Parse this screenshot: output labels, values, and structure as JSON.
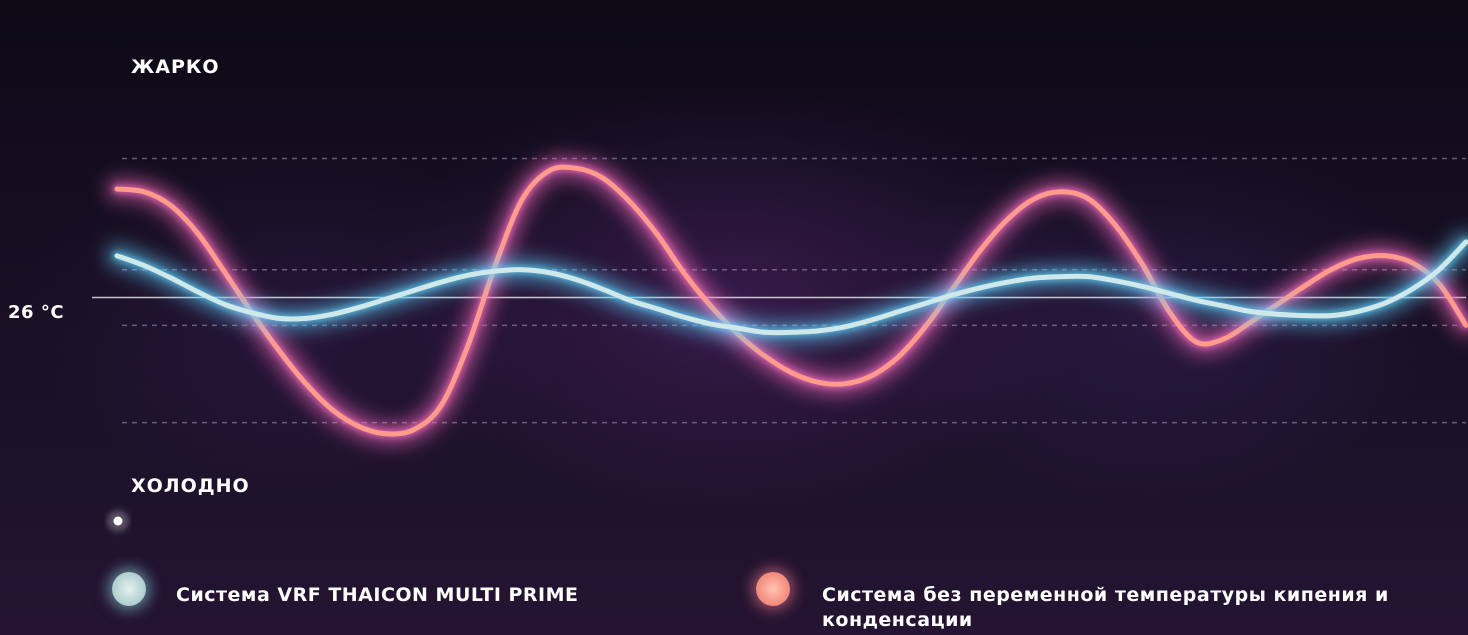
{
  "chart_data": {
    "type": "line",
    "labels": {
      "top": "ЖАРКО",
      "bottom": "ХОЛОДНО",
      "reference": "26 °C"
    },
    "x": [
      0,
      0.1,
      0.2,
      0.3,
      0.4,
      0.5,
      0.6,
      0.7,
      0.8,
      0.9,
      1.0,
      1.1,
      1.2,
      1.3,
      1.4,
      1.5,
      1.6,
      1.7,
      1.8,
      1.9,
      2.0,
      2.1,
      2.2,
      2.3,
      2.4,
      2.5,
      2.6,
      2.7,
      2.8,
      2.9,
      3.0,
      3.1,
      3.2,
      3.3,
      3.4,
      3.5,
      3.6,
      3.7,
      3.8,
      3.9,
      4.0,
      4.1,
      4.2,
      4.3,
      4.4,
      4.5,
      4.6,
      4.7,
      4.8,
      4.9,
      5.0
    ],
    "ylim": [
      -1.6,
      1.6
    ],
    "reference_y": 0,
    "gridlines_y": [
      1.0,
      0.2,
      -0.2,
      -0.9
    ],
    "series": [
      {
        "name": "Система VRF THAICON MULTI PRIME",
        "color": "#cfe9ea",
        "glow": "#5fd6ff",
        "values": [
          0.3,
          0.23,
          0.14,
          0.04,
          -0.05,
          -0.11,
          -0.15,
          -0.15,
          -0.12,
          -0.07,
          -0.01,
          0.05,
          0.11,
          0.16,
          0.19,
          0.2,
          0.18,
          0.13,
          0.06,
          -0.02,
          -0.08,
          -0.14,
          -0.19,
          -0.22,
          -0.25,
          -0.25,
          -0.24,
          -0.21,
          -0.16,
          -0.1,
          -0.04,
          0.02,
          0.07,
          0.11,
          0.14,
          0.15,
          0.15,
          0.12,
          0.08,
          0.03,
          -0.02,
          -0.06,
          -0.1,
          -0.12,
          -0.13,
          -0.13,
          -0.1,
          -0.04,
          0.06,
          0.2,
          0.4
        ]
      },
      {
        "name": "Система без переменной температуры кипения и конденсации",
        "color": "#ff9b8a",
        "glow": "#ff6fc4",
        "values": [
          0.78,
          0.76,
          0.66,
          0.46,
          0.18,
          -0.11,
          -0.38,
          -0.62,
          -0.81,
          -0.93,
          -0.98,
          -0.95,
          -0.78,
          -0.35,
          0.22,
          0.7,
          0.91,
          0.93,
          0.86,
          0.69,
          0.46,
          0.18,
          -0.06,
          -0.26,
          -0.42,
          -0.54,
          -0.61,
          -0.62,
          -0.56,
          -0.42,
          -0.2,
          0.07,
          0.34,
          0.56,
          0.71,
          0.76,
          0.71,
          0.52,
          0.24,
          -0.1,
          -0.32,
          -0.3,
          -0.18,
          -0.05,
          0.08,
          0.2,
          0.28,
          0.3,
          0.25,
          0.1,
          -0.2
        ]
      }
    ]
  },
  "legend": {
    "item1": "Система VRF THAICON MULTI PRIME",
    "item2": "Система без переменной температуры кипения и конденсации"
  },
  "colors": {
    "accent_cool": "#cfe9ea",
    "accent_warm": "#ff9b8a",
    "background": "#140c1e"
  }
}
